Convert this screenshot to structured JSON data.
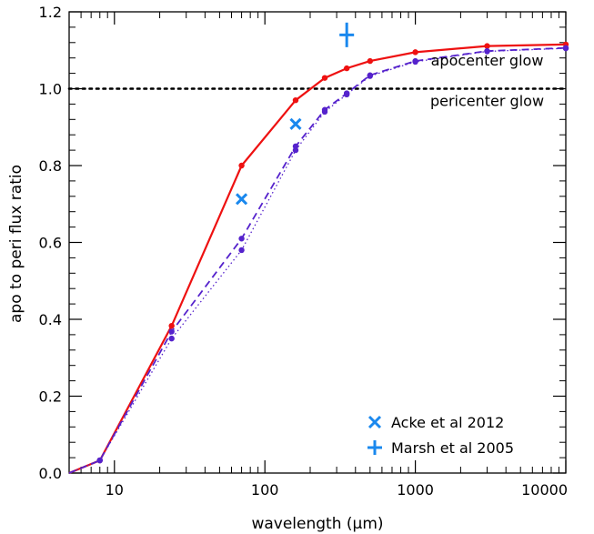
{
  "chart_data": {
    "type": "line",
    "xlabel": "wavelength (μm)",
    "ylabel": "apo to peri flux ratio",
    "xscale": "log",
    "xlim": [
      5,
      10000
    ],
    "ylim": [
      0,
      1.2
    ],
    "grid": false,
    "x_ticks": [
      {
        "value": 10,
        "label": "10"
      },
      {
        "value": 100,
        "label": "100"
      },
      {
        "value": 1000,
        "label": "1000"
      },
      {
        "value": 10000,
        "label": "10000"
      }
    ],
    "y_ticks": [
      {
        "value": 0.0,
        "label": "0.0"
      },
      {
        "value": 0.2,
        "label": "0.2"
      },
      {
        "value": 0.4,
        "label": "0.4"
      },
      {
        "value": 0.6,
        "label": "0.6"
      },
      {
        "value": 0.8,
        "label": "0.8"
      },
      {
        "value": 1.0,
        "label": "1.0"
      },
      {
        "value": 1.2,
        "label": "1.2"
      }
    ],
    "series": [
      {
        "style": "solid",
        "color": "#ee1111",
        "x": [
          5,
          8,
          24,
          70,
          160,
          250,
          350,
          500,
          1000,
          3000,
          10000
        ],
        "y": [
          0.0,
          0.033,
          0.383,
          0.8,
          0.97,
          1.028,
          1.053,
          1.072,
          1.095,
          1.111,
          1.115
        ]
      },
      {
        "style": "dashed",
        "color": "#5522cc",
        "x": [
          5,
          8,
          24,
          70,
          160,
          250,
          350,
          500,
          1000,
          3000,
          10000
        ],
        "y": [
          0.0,
          0.033,
          0.368,
          0.61,
          0.85,
          0.945,
          0.988,
          1.035,
          1.072,
          1.098,
          1.106
        ]
      },
      {
        "style": "dotted",
        "color": "#5522cc",
        "x": [
          5,
          8,
          24,
          70,
          160,
          250,
          350,
          500,
          1000,
          3000,
          10000
        ],
        "y": [
          0.0,
          0.033,
          0.35,
          0.58,
          0.84,
          0.94,
          0.985,
          1.033,
          1.07,
          1.097,
          1.105
        ]
      }
    ],
    "reference_line": {
      "y": 1.0,
      "style": "dotted",
      "color": "#000000"
    },
    "annotations": [
      {
        "text": "apocenter glow",
        "x": 3000,
        "y": 1.06
      },
      {
        "text": "pericenter glow",
        "x": 3000,
        "y": 0.955
      }
    ],
    "observations": [
      {
        "name": "Acke et al 2012",
        "marker": "x",
        "color": "#1a88ee",
        "x": 70,
        "y": 0.713
      },
      {
        "name": "Acke et al 2012",
        "marker": "x",
        "color": "#1a88ee",
        "x": 160,
        "y": 0.908
      },
      {
        "name": "Marsh et al 2005",
        "marker": "plus-errorbar",
        "color": "#1a88ee",
        "x": 350,
        "y": 1.14,
        "yerr": 0.032
      }
    ],
    "legend": {
      "position": "bottom-right",
      "entries": [
        {
          "label": "Acke et al 2012",
          "marker": "x",
          "color": "#1a88ee"
        },
        {
          "label": "Marsh et al 2005",
          "marker": "plus-errorbar",
          "color": "#1a88ee"
        }
      ]
    }
  }
}
